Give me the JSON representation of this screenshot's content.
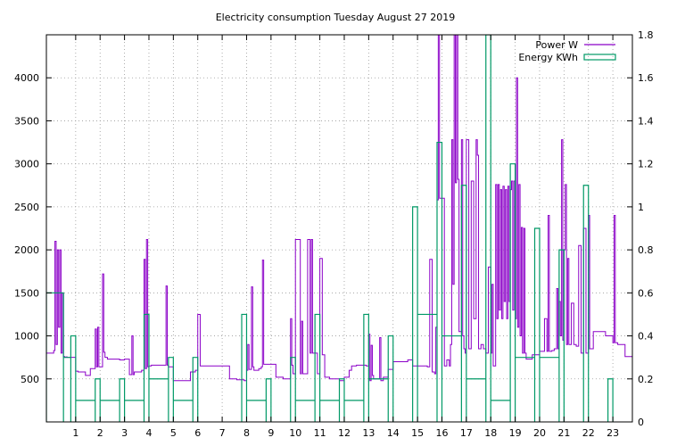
{
  "chart_data": {
    "type": "line",
    "title": "Electricity consumption Tuesday August 27 2019",
    "xlabel": "",
    "ylabel": "",
    "y2label": "",
    "xlim": [
      -0.2,
      23.8
    ],
    "ylim": [
      0,
      4500
    ],
    "y2lim": [
      0,
      1.8
    ],
    "grid": true,
    "legend_position": "top-right",
    "x_ticks": [
      1,
      2,
      3,
      4,
      5,
      6,
      7,
      8,
      9,
      10,
      11,
      12,
      13,
      14,
      15,
      16,
      17,
      18,
      19,
      20,
      21,
      22,
      23
    ],
    "y_ticks": [
      500,
      1000,
      1500,
      2000,
      2500,
      3000,
      3500,
      4000
    ],
    "y2_ticks": [
      0,
      0.2,
      0.4,
      0.6,
      0.8,
      1,
      1.2,
      1.4,
      1.6,
      1.8
    ],
    "y2_tick_labels": [
      "0",
      "0.2",
      "0.4",
      "0.6",
      "0.8",
      "1",
      "1.2",
      "1.4",
      "1.6",
      "1.8"
    ],
    "series": [
      {
        "name": "Power W",
        "axis": "y",
        "style": "line",
        "color": "#8b00c8",
        "x": [
          -0.2,
          0.1,
          0.15,
          0.2,
          0.25,
          0.3,
          0.35,
          0.4,
          0.45,
          0.5,
          0.55,
          0.6,
          0.65,
          0.7,
          0.75,
          1.0,
          1.1,
          1.4,
          1.6,
          1.8,
          1.85,
          1.9,
          1.95,
          2.1,
          2.15,
          2.2,
          2.3,
          2.5,
          2.8,
          3.0,
          3.2,
          3.3,
          3.35,
          3.4,
          3.5,
          3.7,
          3.8,
          3.85,
          3.9,
          3.95,
          4.0,
          4.1,
          4.4,
          4.7,
          4.75,
          4.8,
          5.0,
          5.2,
          5.4,
          5.7,
          5.9,
          6.0,
          6.1,
          6.2,
          6.5,
          7.0,
          7.3,
          7.6,
          7.9,
          8.0,
          8.05,
          8.1,
          8.2,
          8.25,
          8.3,
          8.5,
          8.6,
          8.65,
          8.7,
          8.9,
          9.2,
          9.5,
          9.8,
          9.85,
          9.9,
          10.0,
          10.2,
          10.25,
          10.3,
          10.5,
          10.6,
          10.65,
          10.7,
          10.9,
          11.0,
          11.1,
          11.2,
          11.4,
          11.8,
          12.0,
          12.2,
          12.3,
          12.5,
          12.8,
          12.9,
          13.0,
          13.05,
          13.1,
          13.15,
          13.2,
          13.4,
          13.45,
          13.5,
          13.6,
          13.8,
          14.0,
          14.3,
          14.6,
          14.8,
          15.0,
          15.3,
          15.4,
          15.5,
          15.6,
          15.7,
          15.75,
          15.8,
          15.85,
          15.9,
          16.0,
          16.1,
          16.2,
          16.3,
          16.35,
          16.4,
          16.45,
          16.5,
          16.55,
          16.6,
          16.65,
          16.7,
          16.75,
          16.8,
          16.85,
          16.9,
          16.95,
          17.0,
          17.1,
          17.2,
          17.3,
          17.4,
          17.45,
          17.5,
          17.6,
          17.7,
          17.8,
          17.9,
          18.0,
          18.05,
          18.1,
          18.15,
          18.2,
          18.25,
          18.3,
          18.35,
          18.4,
          18.45,
          18.5,
          18.55,
          18.6,
          18.65,
          18.7,
          18.75,
          18.8,
          18.85,
          18.9,
          18.95,
          19.0,
          19.05,
          19.1,
          19.15,
          19.2,
          19.25,
          19.3,
          19.35,
          19.4,
          19.45,
          19.5,
          19.7,
          20.0,
          20.2,
          20.3,
          20.35,
          20.4,
          20.5,
          20.6,
          20.7,
          20.75,
          20.8,
          20.85,
          20.9,
          20.95,
          21.0,
          21.05,
          21.1,
          21.15,
          21.2,
          21.3,
          21.4,
          21.5,
          21.6,
          21.7,
          21.8,
          21.9,
          22.0,
          22.05,
          22.1,
          22.2,
          22.5,
          22.7,
          23.0,
          23.05,
          23.1,
          23.2,
          23.3,
          23.5,
          23.8
        ],
        "values": [
          800,
          830,
          2100,
          900,
          2000,
          1100,
          2000,
          800,
          1500,
          760,
          750,
          755,
          750,
          750,
          750,
          590,
          580,
          540,
          620,
          1080,
          640,
          1100,
          640,
          1720,
          810,
          750,
          730,
          730,
          720,
          730,
          550,
          1000,
          550,
          580,
          580,
          600,
          1890,
          620,
          2120,
          640,
          650,
          660,
          660,
          1580,
          660,
          640,
          480,
          480,
          480,
          580,
          600,
          1250,
          650,
          650,
          650,
          650,
          500,
          490,
          480,
          600,
          900,
          610,
          1570,
          640,
          600,
          620,
          640,
          1880,
          670,
          670,
          520,
          500,
          1200,
          660,
          560,
          2120,
          560,
          1170,
          560,
          2120,
          800,
          2120,
          800,
          560,
          1900,
          780,
          520,
          500,
          480,
          520,
          600,
          650,
          660,
          660,
          650,
          1020,
          480,
          890,
          540,
          500,
          500,
          980,
          480,
          520,
          610,
          700,
          700,
          720,
          650,
          650,
          650,
          640,
          1890,
          580,
          560,
          1100,
          2580,
          4500,
          2600,
          2600,
          650,
          720,
          650,
          900,
          3280,
          1600,
          4500,
          2780,
          4500,
          2820,
          1050,
          1050,
          3280,
          1000,
          850,
          800,
          3280,
          850,
          2800,
          1200,
          3280,
          3100,
          850,
          900,
          850,
          800,
          1800,
          800,
          1600,
          650,
          650,
          2760,
          1200,
          2760,
          1300,
          2700,
          1200,
          2740,
          1400,
          2700,
          1200,
          2740,
          1400,
          2700,
          2800,
          1300,
          2800,
          1200,
          4000,
          1100,
          2760,
          1000,
          2260,
          800,
          2250,
          800,
          730,
          730,
          780,
          820,
          1200,
          820,
          2400,
          820,
          830,
          850,
          1550,
          850,
          1400,
          1000,
          3280,
          950,
          2000,
          2760,
          900,
          1900,
          900,
          1380,
          900,
          880,
          2050,
          800,
          2250,
          800,
          2400,
          850,
          850,
          1050,
          1050,
          1000,
          920,
          2400,
          920,
          900,
          900,
          760,
          760
        ]
      },
      {
        "name": "Energy KWh",
        "axis": "y2",
        "style": "steps",
        "color": "#009966",
        "x": [
          -0.2,
          0.5,
          0.8,
          1.0,
          1.8,
          2.0,
          2.8,
          3.0,
          3.8,
          4.0,
          4.8,
          5.0,
          5.8,
          6.0,
          6.8,
          7.0,
          7.8,
          8.0,
          8.8,
          9.0,
          9.8,
          10.0,
          10.8,
          11.0,
          11.8,
          12.0,
          12.8,
          13.0,
          13.8,
          14.0,
          14.8,
          15.0,
          15.8,
          16.0,
          16.8,
          17.0,
          17.8,
          18.0,
          18.8,
          19.0,
          19.8,
          20.0,
          20.8,
          21.0,
          21.8,
          22.0,
          22.8,
          23.0
        ],
        "values": [
          0.6,
          0.3,
          0.4,
          0.1,
          0.2,
          0.1,
          0.2,
          0.1,
          0.5,
          0.2,
          0.3,
          0.1,
          0.3,
          0.0,
          0.0,
          0.0,
          0.5,
          0.1,
          0.2,
          0.0,
          0.3,
          0.1,
          0.5,
          0.1,
          0.2,
          0.1,
          0.5,
          0.2,
          0.4,
          0.0,
          1.0,
          0.5,
          1.3,
          0.4,
          1.1,
          0.2,
          1.8,
          0.1,
          1.2,
          0.3,
          0.9,
          0.3,
          0.8,
          0.0,
          1.1,
          0.0,
          0.2,
          0.0
        ]
      }
    ]
  }
}
